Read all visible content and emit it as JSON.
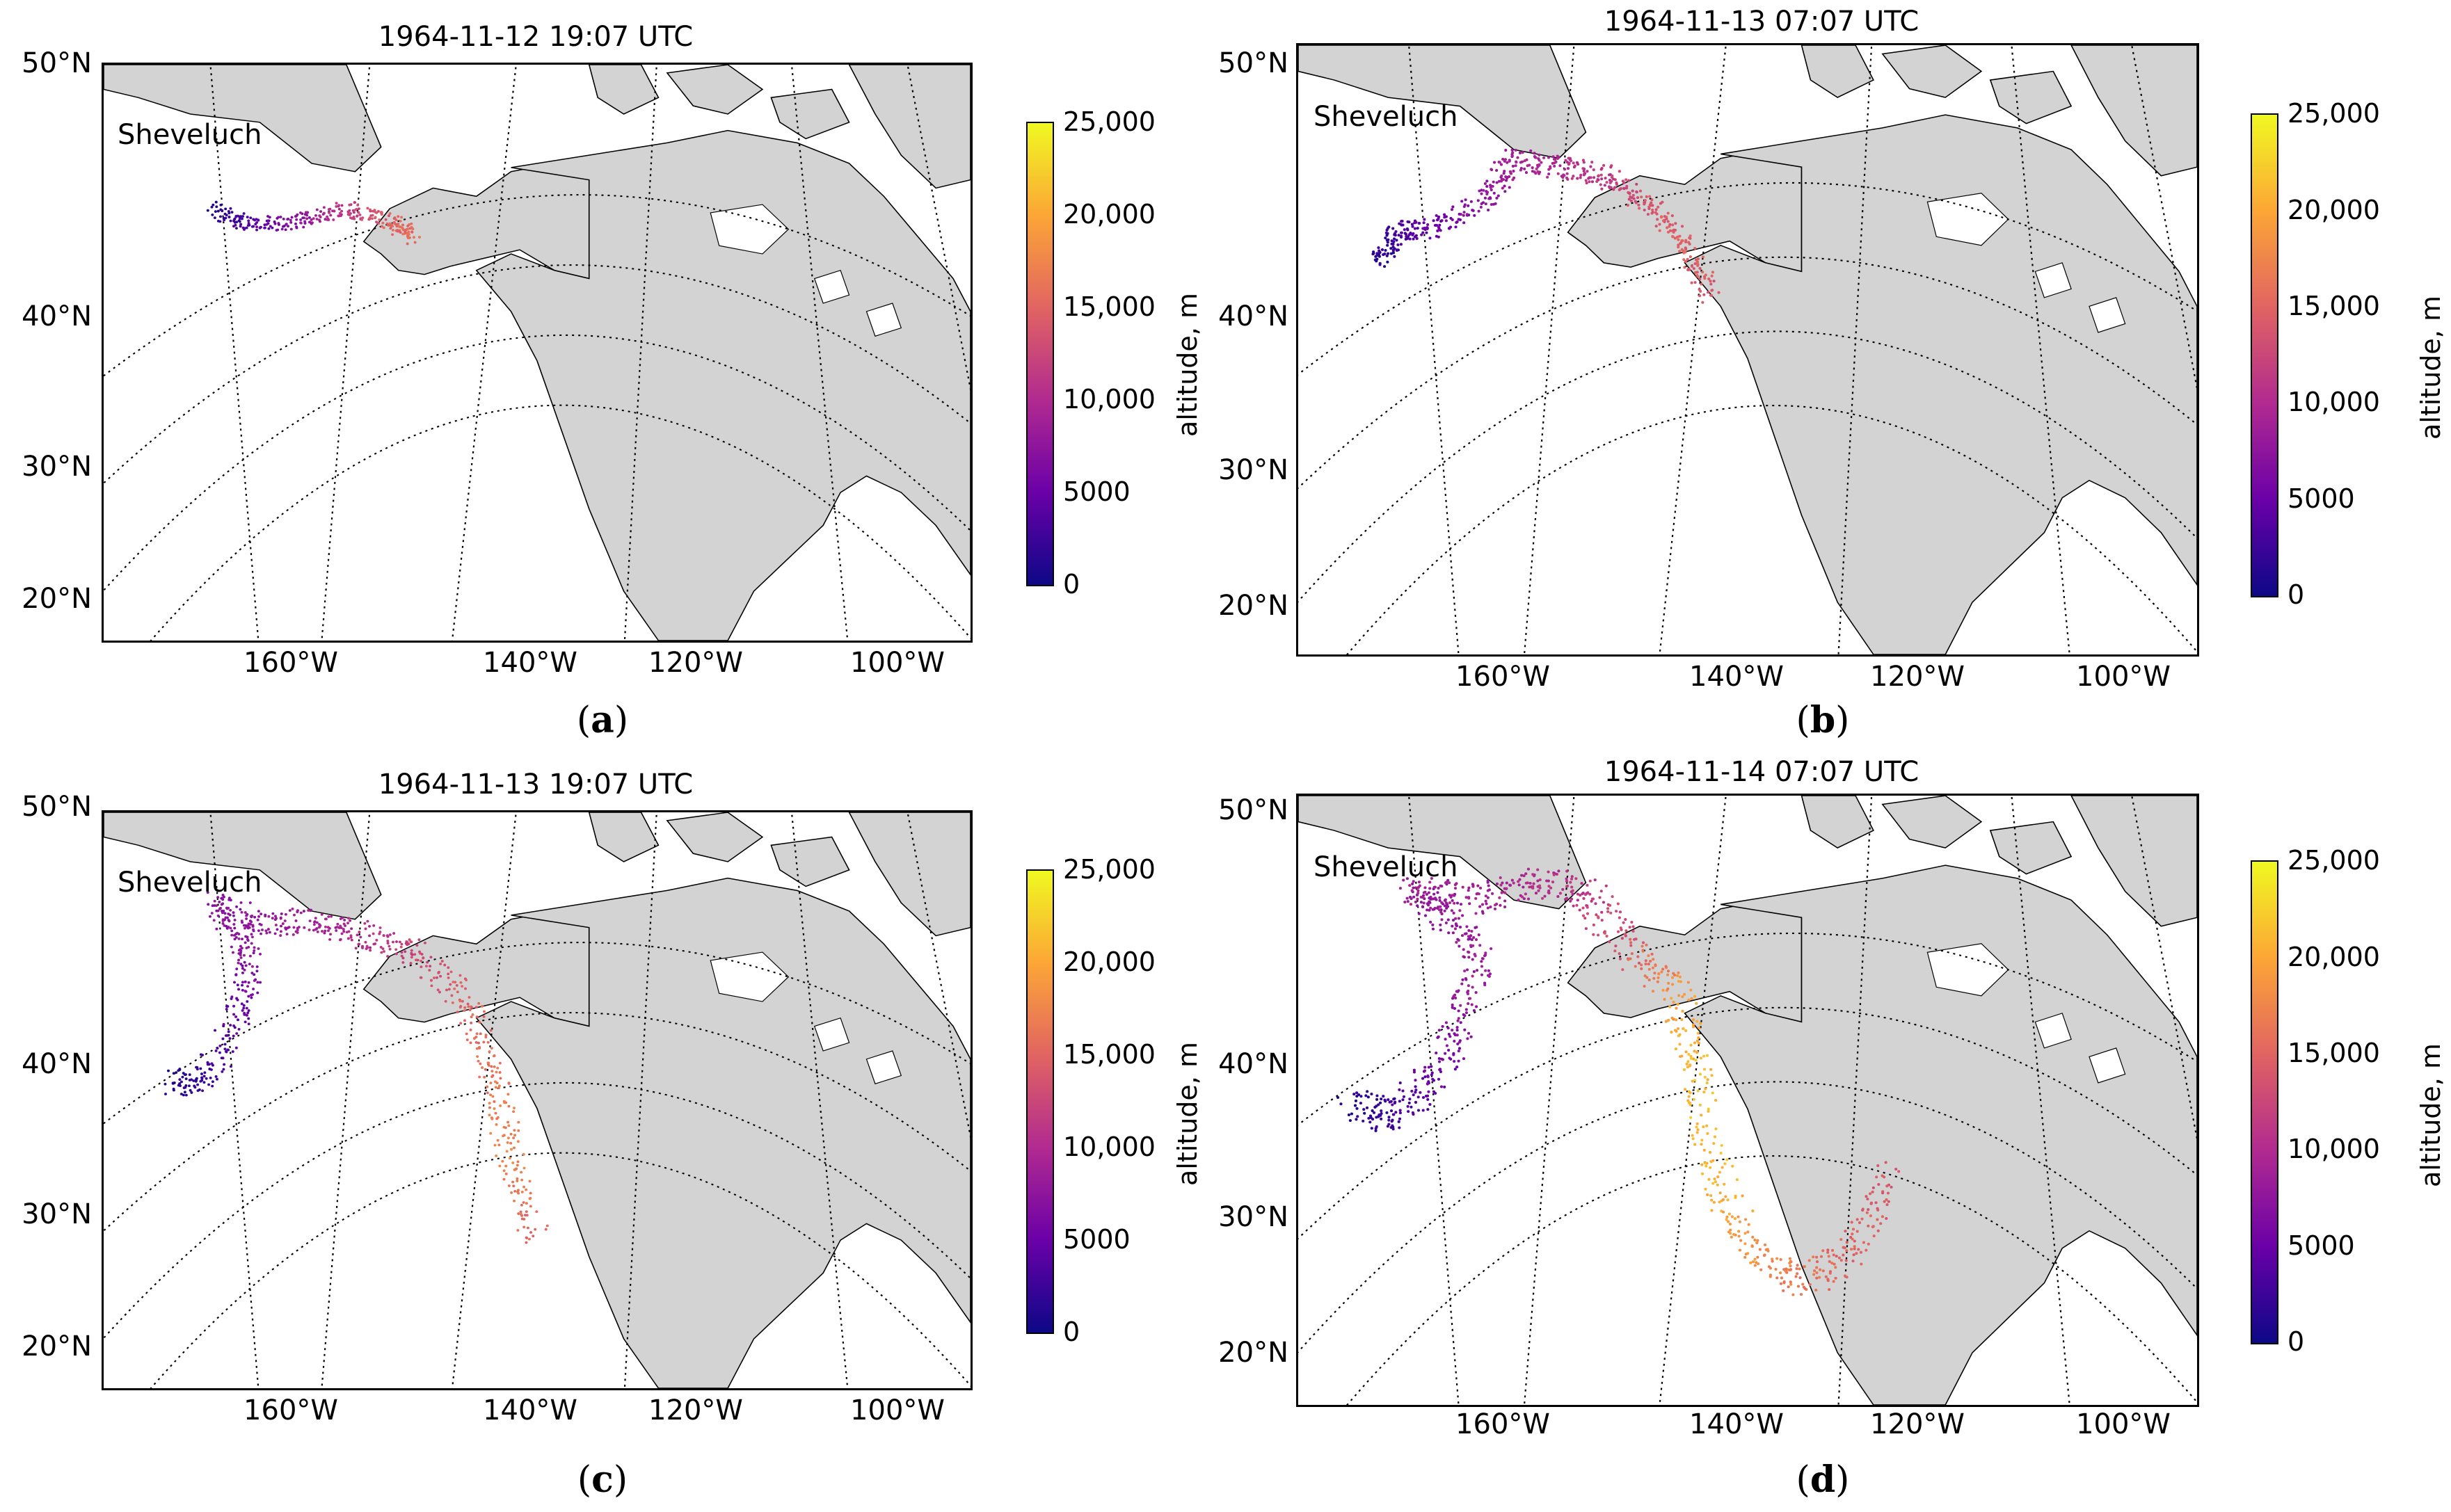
{
  "panels": [
    {
      "title": "1964-11-12 19:07 UTC",
      "caption_letter": "a",
      "stage": 1
    },
    {
      "title": "1964-11-13 07:07 UTC",
      "caption_letter": "b",
      "stage": 2
    },
    {
      "title": "1964-11-13 19:07 UTC",
      "caption_letter": "c",
      "stage": 3
    },
    {
      "title": "1964-11-14 07:07 UTC",
      "caption_letter": "d",
      "stage": 4
    }
  ],
  "volcano_label": "Sheveluch",
  "lat_labels": [
    "50°N",
    "40°N",
    "30°N",
    "20°N"
  ],
  "lon_labels": [
    "160°W",
    "140°W",
    "120°W",
    "100°W"
  ],
  "colorbar": {
    "title": "altitude, m",
    "ticks": [
      "25,000",
      "20,000",
      "15,000",
      "10,000",
      "5000",
      "0"
    ],
    "colormap": "plasma",
    "range": [
      0,
      25000
    ]
  },
  "colors": {
    "land": "#d3d3d3",
    "ocean": "#ffffff",
    "graticule": "#000000",
    "low": "#0d0887",
    "high": "#f0f921"
  }
}
